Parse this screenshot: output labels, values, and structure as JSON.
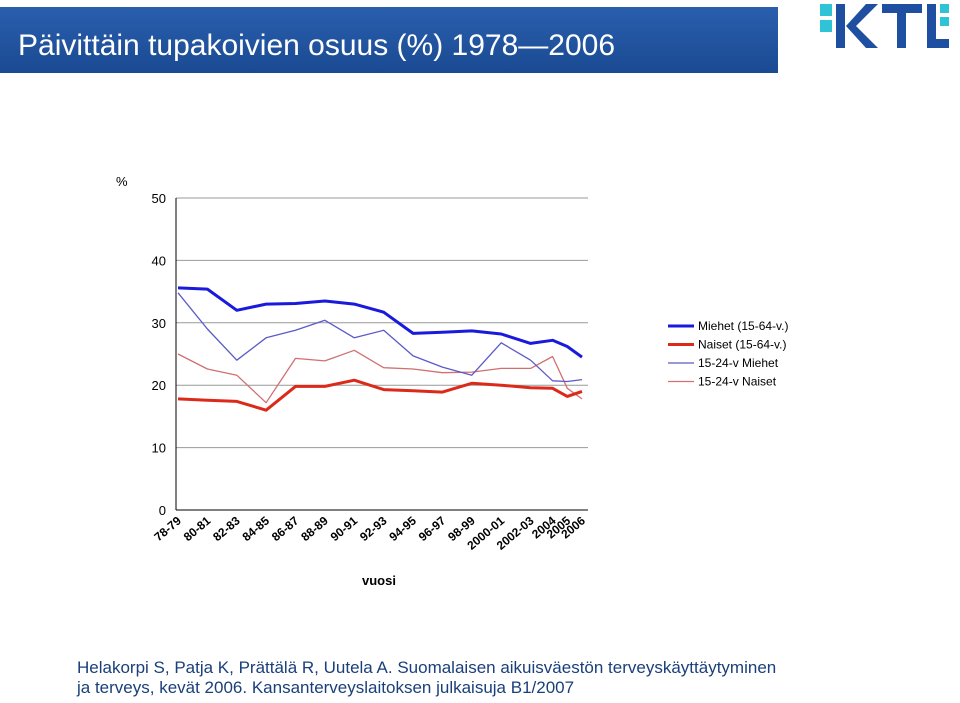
{
  "header": {
    "title": "Päivittäin tupakoivien osuus (%) 1978—2006",
    "logo_text": "KTL"
  },
  "source": {
    "line1": "Helakorpi S, Patja K, Prättälä R, Uutela A. Suomalaisen aikuisväestön terveyskäyttäytyminen",
    "line2": "ja terveys, kevät 2006. Kansanterveyslaitoksen julkaisuja B1/2007"
  },
  "colors": {
    "header_bg": "#1c4e96",
    "logo_blue": "#1f4fa0",
    "logo_cyan": "#2ec4d6"
  },
  "chart_data": {
    "type": "line",
    "title": "",
    "xlabel": "vuosi",
    "ylabel": "%",
    "ylim": [
      0,
      50
    ],
    "yticks": [
      0,
      10,
      20,
      30,
      40,
      50
    ],
    "grid": true,
    "legend_position": "right",
    "categories": [
      "78-79",
      "80-81",
      "82-83",
      "84-85",
      "86-87",
      "88-89",
      "90-91",
      "92-93",
      "94-95",
      "96-97",
      "98-99",
      "2000-01",
      "2002-03",
      "2004",
      "2005",
      "2006"
    ],
    "x": [
      1978.5,
      1980.5,
      1982.5,
      1984.5,
      1986.5,
      1988.5,
      1990.5,
      1992.5,
      1994.5,
      1996.5,
      1998.5,
      2000.5,
      2002.5,
      2004,
      2005,
      2006
    ],
    "series": [
      {
        "name": "Miehet (15-64-v.)",
        "color": "#1a1adc",
        "width": 3,
        "values": [
          35.6,
          35.4,
          32.0,
          33.0,
          33.1,
          33.5,
          33.0,
          31.7,
          28.3,
          28.5,
          28.7,
          28.2,
          26.7,
          27.2,
          26.2,
          24.5
        ]
      },
      {
        "name": "Naiset (15-64-v.)",
        "color": "#dc2a1a",
        "width": 3,
        "values": [
          17.8,
          17.6,
          17.4,
          16.0,
          19.8,
          19.8,
          20.8,
          19.3,
          19.1,
          18.9,
          20.3,
          20.0,
          19.6,
          19.5,
          18.2,
          19.0
        ]
      },
      {
        "name": "15-24-v Miehet",
        "color": "#5a5ac8",
        "width": 1.3,
        "values": [
          34.8,
          29.0,
          24.0,
          27.6,
          28.8,
          30.4,
          27.6,
          28.8,
          24.7,
          22.9,
          21.6,
          26.8,
          24.0,
          20.7,
          20.6,
          20.9
        ]
      },
      {
        "name": "15-24-v Naiset",
        "color": "#d07070",
        "width": 1.3,
        "values": [
          25.0,
          22.6,
          21.6,
          17.2,
          24.3,
          23.9,
          25.6,
          22.8,
          22.6,
          22.0,
          22.1,
          22.7,
          22.7,
          24.6,
          19.5,
          17.8
        ]
      }
    ]
  }
}
